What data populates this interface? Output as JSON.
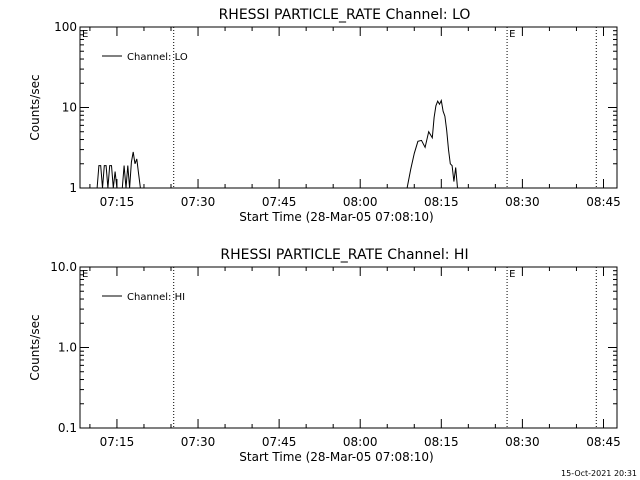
{
  "footer_timestamp": "15-Oct-2021 20:31",
  "chart_data": [
    {
      "type": "line",
      "title": "RHESSI PARTICLE_RATE Channel: LO",
      "xlabel": "Start Time (28-Mar-05 07:08:10)",
      "ylabel": "Counts/sec",
      "yscale": "log",
      "ylim": [
        1,
        100
      ],
      "y_ticks": [
        1,
        10,
        100
      ],
      "y_tick_labels": [
        "1",
        "10",
        "100"
      ],
      "xlim": [
        "07:08:10",
        "08:47:30"
      ],
      "x_ticks": [
        "07:15",
        "07:30",
        "07:45",
        "08:00",
        "08:15",
        "08:30",
        "08:45"
      ],
      "x_tick_labels": [
        "07:15",
        "07:30",
        "07:45",
        "08:00",
        "08:15",
        "08:30",
        "08:45"
      ],
      "grid": false,
      "legend": {
        "position": "top-left",
        "entries": [
          "Channel: LO"
        ]
      },
      "markers": [
        {
          "label": "E",
          "x": "07:08:10"
        },
        {
          "label": "E",
          "x": "08:27:10"
        }
      ],
      "vlines": [
        "07:25:30",
        "08:27:10",
        "08:43:40"
      ],
      "series": [
        {
          "name": "Channel: LO",
          "x": [
            "07:11:20",
            "07:11:40",
            "07:12:00",
            "07:12:20",
            "07:12:40",
            "07:13:00",
            "07:13:20",
            "07:13:40",
            "07:14:00",
            "07:14:20",
            "07:14:40",
            "07:15:00",
            "07:15:20",
            "07:15:40",
            "07:16:00",
            "07:16:20",
            "07:16:40",
            "07:17:00",
            "07:17:20",
            "07:17:40",
            "07:18:00",
            "07:18:20",
            "07:18:40",
            "07:19:00",
            "07:19:20",
            "07:19:40",
            "07:20:00",
            "08:08:40",
            "08:09:20",
            "08:10:00",
            "08:10:40",
            "08:11:20",
            "08:12:00",
            "08:12:40",
            "08:13:20",
            "08:13:40",
            "08:14:00",
            "08:14:20",
            "08:14:40",
            "08:15:00",
            "08:15:20",
            "08:15:40",
            "08:16:00",
            "08:16:20",
            "08:16:40",
            "08:17:00",
            "08:17:20",
            "08:17:40",
            "08:18:00"
          ],
          "y": [
            1,
            1.9,
            1.9,
            1,
            1.9,
            1.9,
            1,
            1.9,
            1.9,
            1,
            1.6,
            1,
            1,
            1,
            1,
            1.9,
            1,
            1.9,
            1,
            2.1,
            2.8,
            2.0,
            2.3,
            1.5,
            1,
            1,
            1,
            1,
            1.7,
            2.7,
            3.8,
            3.9,
            3.2,
            5.0,
            4.2,
            7.5,
            10.5,
            12.0,
            11.0,
            12.2,
            9.0,
            7.8,
            5.2,
            3.0,
            2.0,
            1.9,
            1.2,
            1.8,
            1
          ]
        }
      ]
    },
    {
      "type": "line",
      "title": "RHESSI PARTICLE_RATE Channel: HI",
      "xlabel": "Start Time (28-Mar-05 07:08:10)",
      "ylabel": "Counts/sec",
      "yscale": "log",
      "ylim": [
        0.1,
        10
      ],
      "y_ticks": [
        0.1,
        1,
        10
      ],
      "y_tick_labels": [
        "0.1",
        "1.0",
        "10.0"
      ],
      "xlim": [
        "07:08:10",
        "08:47:30"
      ],
      "x_ticks": [
        "07:15",
        "07:30",
        "07:45",
        "08:00",
        "08:15",
        "08:30",
        "08:45"
      ],
      "x_tick_labels": [
        "07:15",
        "07:30",
        "07:45",
        "08:00",
        "08:15",
        "08:30",
        "08:45"
      ],
      "grid": false,
      "legend": {
        "position": "top-left",
        "entries": [
          "Channel: HI"
        ]
      },
      "markers": [
        {
          "label": "E",
          "x": "07:08:10"
        },
        {
          "label": "E",
          "x": "08:27:10"
        }
      ],
      "vlines": [
        "07:25:30",
        "08:27:10",
        "08:43:40"
      ],
      "series": [
        {
          "name": "Channel: HI",
          "x": [],
          "y": []
        }
      ]
    }
  ]
}
